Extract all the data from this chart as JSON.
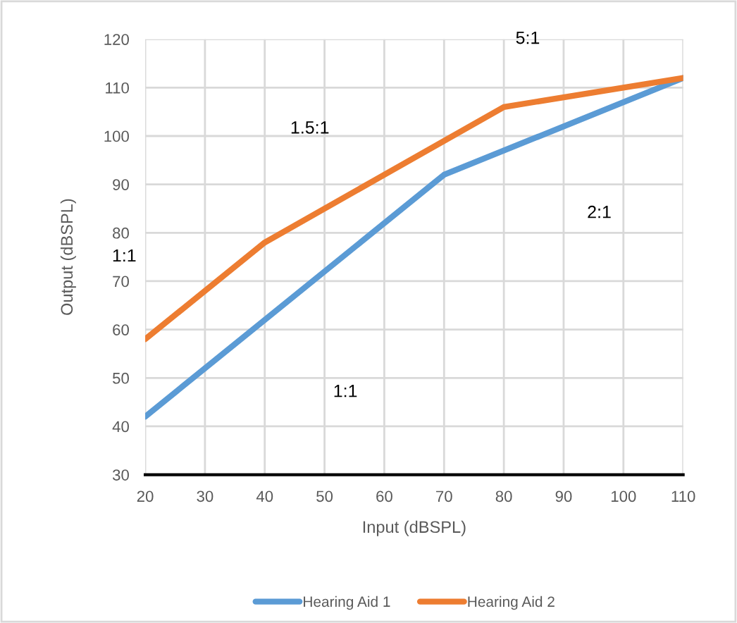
{
  "chart_data": {
    "type": "line",
    "xlabel": "Input (dBSPL)",
    "ylabel": "Output (dBSPL)",
    "series": [
      {
        "name": "Hearing Aid 1",
        "color": "#5b9bd5",
        "x": [
          20,
          70,
          110
        ],
        "values": [
          42,
          92,
          112
        ]
      },
      {
        "name": "Hearing Aid 2",
        "color": "#ed7d31",
        "x": [
          20,
          40,
          80,
          110
        ],
        "values": [
          58,
          78,
          106,
          112
        ]
      }
    ],
    "xlim": [
      20,
      110
    ],
    "xticks": [
      20,
      30,
      40,
      50,
      60,
      70,
      80,
      90,
      100,
      110
    ],
    "ylim": [
      30,
      120
    ],
    "yticks": [
      30,
      40,
      50,
      60,
      70,
      80,
      90,
      100,
      110,
      120
    ],
    "grid": true,
    "legend": "bottom",
    "annotations": [
      "5:1",
      "1.5:1",
      "2:1",
      "1:1",
      "1:1"
    ]
  }
}
